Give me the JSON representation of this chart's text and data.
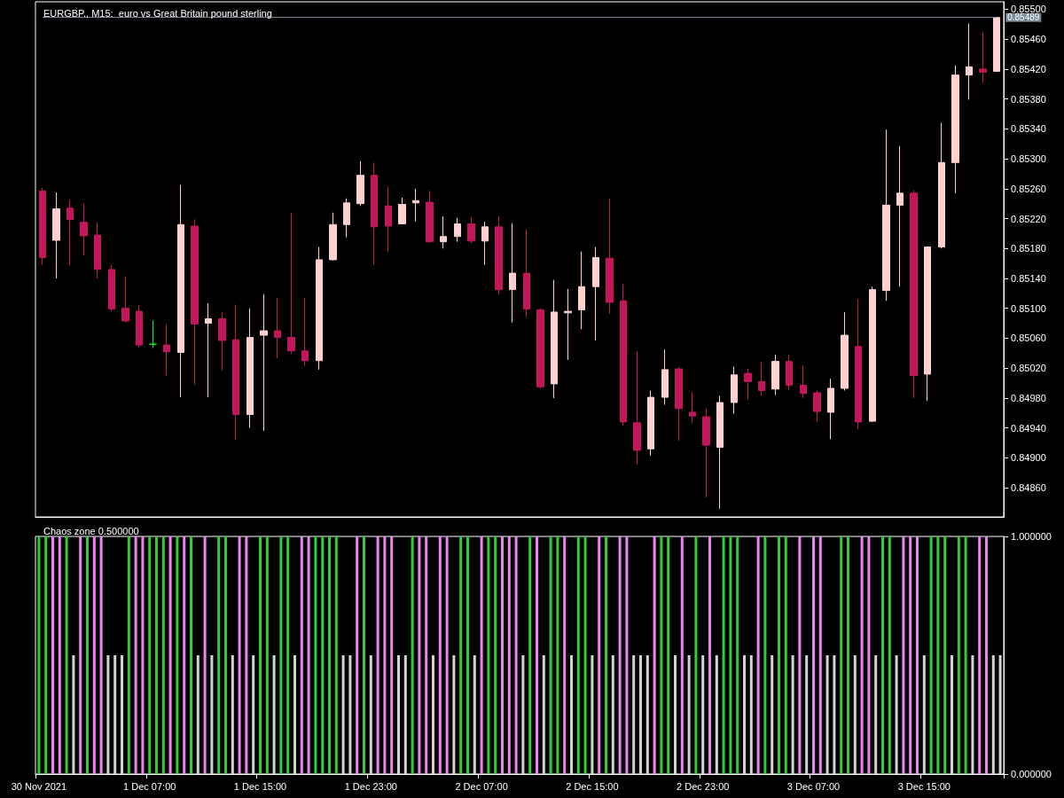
{
  "chart_data": [
    {
      "type": "candlestick",
      "title": "EURGBP., M15:  euro vs Great Britain pound sterling",
      "categories": [
        null,
        null,
        null,
        null,
        null,
        null,
        null,
        null,
        null,
        null,
        null,
        null,
        null,
        null,
        null,
        null,
        null,
        null,
        null,
        null,
        null,
        null,
        null,
        null,
        null,
        null,
        null,
        null,
        null,
        null,
        null,
        null,
        null,
        null,
        null,
        null,
        null,
        null,
        null,
        null,
        null,
        null,
        null,
        null,
        null,
        null,
        null,
        null,
        null,
        null,
        null,
        null,
        null,
        null,
        null,
        null,
        null,
        null,
        null,
        null,
        null,
        null,
        null,
        null,
        null,
        null,
        null,
        null,
        null,
        null
      ],
      "ohlc": [
        [
          0.85257,
          0.85261,
          0.85158,
          0.85168
        ],
        [
          0.85191,
          0.85255,
          0.8514,
          0.85233
        ],
        [
          0.85234,
          0.85245,
          0.85158,
          0.85219
        ],
        [
          0.85215,
          0.8524,
          0.85171,
          0.85197
        ],
        [
          0.85198,
          0.85215,
          0.8514,
          0.85152
        ],
        [
          0.85152,
          0.85158,
          0.85096,
          0.85099
        ],
        [
          0.851,
          0.85143,
          0.85081,
          0.85083
        ],
        [
          0.85096,
          0.85105,
          0.85047,
          0.85051
        ],
        [
          0.85052,
          0.85084,
          0.85047,
          0.85052
        ],
        [
          0.85051,
          0.85079,
          0.8501,
          0.85042
        ],
        [
          0.85041,
          0.85265,
          0.84981,
          0.85212
        ],
        [
          0.8521,
          0.85219,
          0.84998,
          0.85079
        ],
        [
          0.8508,
          0.85107,
          0.84981,
          0.85086
        ],
        [
          0.85086,
          0.85095,
          0.85017,
          0.85057
        ],
        [
          0.85058,
          0.85105,
          0.84924,
          0.84958
        ],
        [
          0.84958,
          0.851,
          0.8494,
          0.85061
        ],
        [
          0.85064,
          0.85119,
          0.84936,
          0.8507
        ],
        [
          0.8507,
          0.85114,
          0.85033,
          0.85061
        ],
        [
          0.85061,
          0.85228,
          0.85039,
          0.85043
        ],
        [
          0.85043,
          0.85114,
          0.85023,
          0.8503
        ],
        [
          0.8503,
          0.85182,
          0.85018,
          0.85165
        ],
        [
          0.85165,
          0.85228,
          0.85164,
          0.85212
        ],
        [
          0.85212,
          0.85247,
          0.85195,
          0.85241
        ],
        [
          0.8524,
          0.85297,
          0.85237,
          0.85278
        ],
        [
          0.85278,
          0.85295,
          0.85158,
          0.85209
        ],
        [
          0.85237,
          0.85263,
          0.85176,
          0.8521
        ],
        [
          0.85213,
          0.85248,
          0.85213,
          0.85239
        ],
        [
          0.85241,
          0.8526,
          0.85216,
          0.85244
        ],
        [
          0.85242,
          0.85257,
          0.85188,
          0.85189
        ],
        [
          0.85189,
          0.85223,
          0.8518,
          0.85196
        ],
        [
          0.85196,
          0.85221,
          0.85189,
          0.85213
        ],
        [
          0.85213,
          0.85222,
          0.85187,
          0.8519
        ],
        [
          0.8519,
          0.85216,
          0.85158,
          0.85209
        ],
        [
          0.85209,
          0.85223,
          0.85119,
          0.85125
        ],
        [
          0.85125,
          0.85214,
          0.85081,
          0.85147
        ],
        [
          0.85147,
          0.85206,
          0.85088,
          0.85099
        ],
        [
          0.85098,
          0.851,
          0.84993,
          0.84995
        ],
        [
          0.84999,
          0.85138,
          0.8498,
          0.85095
        ],
        [
          0.85094,
          0.85126,
          0.85031,
          0.85096
        ],
        [
          0.85098,
          0.85176,
          0.85072,
          0.85129
        ],
        [
          0.85129,
          0.85182,
          0.85057,
          0.85168
        ],
        [
          0.85167,
          0.85247,
          0.85093,
          0.85108
        ],
        [
          0.8511,
          0.85132,
          0.84943,
          0.84948
        ],
        [
          0.84947,
          0.85043,
          0.84891,
          0.8491
        ],
        [
          0.84912,
          0.8499,
          0.84903,
          0.84981
        ],
        [
          0.84981,
          0.85045,
          0.84971,
          0.85018
        ],
        [
          0.85019,
          0.85022,
          0.84923,
          0.84966
        ],
        [
          0.84961,
          0.84988,
          0.84946,
          0.84956
        ],
        [
          0.84955,
          0.84966,
          0.84847,
          0.84917
        ],
        [
          0.84914,
          0.84983,
          0.84832,
          0.84974
        ],
        [
          0.84974,
          0.85022,
          0.84959,
          0.85011
        ],
        [
          0.85013,
          0.85019,
          0.84978,
          0.85002
        ],
        [
          0.85002,
          0.85028,
          0.84983,
          0.8499
        ],
        [
          0.84992,
          0.85038,
          0.84984,
          0.85029
        ],
        [
          0.85029,
          0.85038,
          0.84991,
          0.84997
        ],
        [
          0.84997,
          0.85024,
          0.8498,
          0.84986
        ],
        [
          0.84987,
          0.8499,
          0.84948,
          0.84962
        ],
        [
          0.84961,
          0.85006,
          0.84925,
          0.84993
        ],
        [
          0.84993,
          0.85095,
          0.8499,
          0.85064
        ],
        [
          0.85049,
          0.85113,
          0.84938,
          0.84948
        ],
        [
          0.84949,
          0.85129,
          0.84948,
          0.85125
        ],
        [
          0.85124,
          0.85339,
          0.8511,
          0.85238
        ],
        [
          0.85238,
          0.85317,
          0.85129,
          0.85254
        ],
        [
          0.85254,
          0.85258,
          0.8498,
          0.8501
        ],
        [
          0.85012,
          0.85182,
          0.84976,
          0.85182
        ],
        [
          0.85182,
          0.85348,
          0.8518,
          0.85295
        ],
        [
          0.85295,
          0.85425,
          0.85254,
          0.85412
        ],
        [
          0.85412,
          0.85481,
          0.85379,
          0.85423
        ],
        [
          0.8542,
          0.85469,
          0.85401,
          0.85416
        ],
        [
          0.85417,
          0.8549,
          0.85417,
          0.85489
        ]
      ],
      "colors": [
        "#c2185b",
        "#ffd0d0",
        "#c2185b",
        "#c2185b",
        "#c2185b",
        "#c2185b",
        "#c2185b",
        "#c2185b",
        "#00ff00",
        "#c2185b",
        "#ffd0d0",
        "#c2185b",
        "#ffd0d0",
        "#c2185b",
        "#c2185b",
        "#ffd0d0",
        "#ffd0d0",
        "#c2185b",
        "#c2185b",
        "#c2185b",
        "#ffd0d0",
        "#ffd0d0",
        "#ffd0d0",
        "#ffd0d0",
        "#c2185b",
        "#c2185b",
        "#ffd0d0",
        "#ffd0d0",
        "#c2185b",
        "#ffd0d0",
        "#ffd0d0",
        "#c2185b",
        "#ffd0d0",
        "#c2185b",
        "#ffd0d0",
        "#c2185b",
        "#c2185b",
        "#ffd0d0",
        "#ffd0d0",
        "#ffd0d0",
        "#ffd0d0",
        "#c2185b",
        "#c2185b",
        "#c2185b",
        "#ffd0d0",
        "#ffd0d0",
        "#c2185b",
        "#c2185b",
        "#c2185b",
        "#ffd0d0",
        "#ffd0d0",
        "#c2185b",
        "#c2185b",
        "#ffd0d0",
        "#c2185b",
        "#c2185b",
        "#c2185b",
        "#ffd0d0",
        "#ffd0d0",
        "#c2185b",
        "#ffd0d0",
        "#ffd0d0",
        "#ffd0d0",
        "#c2185b",
        "#ffd0d0",
        "#ffd0d0",
        "#ffd0d0",
        "#ffd0d0",
        "#c2185b",
        "#ffd0d0"
      ],
      "ylim": [
        0.84821,
        0.8551
      ],
      "yticks": [
        {
          "value": 0.8486,
          "label": "0.84860"
        },
        {
          "value": 0.849,
          "label": "0.84900"
        },
        {
          "value": 0.8494,
          "label": "0.84940"
        },
        {
          "value": 0.8498,
          "label": "0.84980"
        },
        {
          "value": 0.8502,
          "label": "0.85020"
        },
        {
          "value": 0.8506,
          "label": "0.85060"
        },
        {
          "value": 0.851,
          "label": "0.85100"
        },
        {
          "value": 0.8514,
          "label": "0.85140"
        },
        {
          "value": 0.8518,
          "label": "0.85180"
        },
        {
          "value": 0.8522,
          "label": "0.85220"
        },
        {
          "value": 0.8526,
          "label": "0.85260"
        },
        {
          "value": 0.853,
          "label": "0.85300"
        },
        {
          "value": 0.8534,
          "label": "0.85340"
        },
        {
          "value": 0.8538,
          "label": "0.85380"
        },
        {
          "value": 0.8542,
          "label": "0.85420"
        },
        {
          "value": 0.8546,
          "label": "0.85460"
        },
        {
          "value": 0.855,
          "label": "0.85500"
        }
      ],
      "tick_labels": "y",
      "ref_lines": [
        {
          "axis": "y",
          "value": 0.85489,
          "label": "0.85489",
          "color": "#778899"
        }
      ]
    },
    {
      "type": "bar",
      "title": "Chaos zone 0.500000",
      "categories": [
        "30 Nov 2021",
        null,
        null,
        null,
        null,
        null,
        null,
        null,
        null,
        null,
        null,
        null,
        null,
        null,
        null,
        null,
        "1 Dec 07:00",
        null,
        null,
        null,
        null,
        null,
        null,
        null,
        null,
        null,
        null,
        null,
        null,
        null,
        null,
        null,
        "1 Dec 15:00",
        null,
        null,
        null,
        null,
        null,
        null,
        null,
        null,
        null,
        null,
        null,
        null,
        null,
        null,
        null,
        "1 Dec 23:00",
        null,
        null,
        null,
        null,
        null,
        null,
        null,
        null,
        null,
        null,
        null,
        null,
        null,
        null,
        null,
        "2 Dec 07:00",
        null,
        null,
        null,
        null,
        null,
        null,
        null,
        null,
        null,
        null,
        null,
        null,
        null,
        null,
        null,
        "2 Dec 15:00",
        null,
        null,
        null,
        null,
        null,
        null,
        null,
        null,
        null,
        null,
        null,
        null,
        null,
        null,
        null,
        "2 Dec 23:00",
        null,
        null,
        null,
        null,
        null,
        null,
        null,
        null,
        null,
        null,
        null,
        null,
        null,
        null,
        null,
        "3 Dec 07:00",
        null,
        null,
        null,
        null,
        null,
        null,
        null,
        null,
        null,
        null,
        null,
        null,
        null,
        null,
        null,
        "3 Dec 15:00",
        null,
        null,
        null,
        null,
        null,
        null,
        null,
        null,
        null,
        null,
        null
      ],
      "values": [
        1,
        1,
        1,
        1,
        1,
        0.5,
        1,
        1,
        1,
        1,
        0.5,
        0.5,
        0.5,
        1,
        1,
        1,
        1,
        1,
        1,
        1,
        1,
        1,
        1,
        0.5,
        1,
        0.5,
        1,
        1,
        0.5,
        1,
        1,
        0.5,
        1,
        1,
        0.5,
        1,
        1,
        0.5,
        1,
        1,
        1,
        1,
        1,
        1,
        0.5,
        0.5,
        1,
        1,
        0.5,
        1,
        1,
        1,
        0.5,
        0.5,
        1,
        1,
        1,
        0.5,
        1,
        1,
        0.5,
        1,
        1,
        0.5,
        1,
        1,
        1,
        1,
        1,
        1,
        0.5,
        1,
        1,
        0.5,
        1,
        1,
        1,
        0.5,
        1,
        1,
        0.5,
        1,
        1,
        0.5,
        1,
        1,
        0.5,
        0.5,
        0.5,
        1,
        1,
        1,
        0.5,
        1,
        0.5,
        1,
        0.5,
        1,
        0.5,
        1,
        1,
        1,
        0.5,
        0.5,
        1,
        1,
        0.5,
        1,
        1,
        0.5,
        1,
        0.5,
        1,
        1,
        0.5,
        0.5,
        1,
        1,
        0.5,
        1,
        1,
        0.5,
        1,
        1,
        0.5,
        1,
        1,
        1,
        0.5,
        1,
        1,
        1,
        0.5,
        1,
        1,
        0.5,
        1,
        1,
        0.5,
        0.5
      ],
      "colors": [
        "#32cd32",
        "#32cd32",
        "#ee82ee",
        "#ee82ee",
        "#32cd32",
        "#d3d3d3",
        "#ee82ee",
        "#32cd32",
        "#ee82ee",
        "#ee82ee",
        "#d3d3d3",
        "#d3d3d3",
        "#d3d3d3",
        "#32cd32",
        "#ee82ee",
        "#ee82ee",
        "#32cd32",
        "#32cd32",
        "#32cd32",
        "#ee82ee",
        "#32cd32",
        "#ee82ee",
        "#32cd32",
        "#d3d3d3",
        "#ee82ee",
        "#d3d3d3",
        "#32cd32",
        "#32cd32",
        "#d3d3d3",
        "#ee82ee",
        "#ee82ee",
        "#d3d3d3",
        "#32cd32",
        "#32cd32",
        "#d3d3d3",
        "#32cd32",
        "#32cd32",
        "#d3d3d3",
        "#ee82ee",
        "#ee82ee",
        "#32cd32",
        "#32cd32",
        "#32cd32",
        "#32cd32",
        "#d3d3d3",
        "#d3d3d3",
        "#ee82ee",
        "#32cd32",
        "#d3d3d3",
        "#ee82ee",
        "#ee82ee",
        "#ee82ee",
        "#d3d3d3",
        "#d3d3d3",
        "#32cd32",
        "#ee82ee",
        "#ee82ee",
        "#d3d3d3",
        "#ee82ee",
        "#ee82ee",
        "#d3d3d3",
        "#32cd32",
        "#32cd32",
        "#d3d3d3",
        "#ee82ee",
        "#32cd32",
        "#32cd32",
        "#ee82ee",
        "#ee82ee",
        "#ee82ee",
        "#d3d3d3",
        "#32cd32",
        "#ee82ee",
        "#d3d3d3",
        "#32cd32",
        "#32cd32",
        "#ee82ee",
        "#d3d3d3",
        "#32cd32",
        "#32cd32",
        "#d3d3d3",
        "#ee82ee",
        "#32cd32",
        "#d3d3d3",
        "#ee82ee",
        "#ee82ee",
        "#d3d3d3",
        "#d3d3d3",
        "#d3d3d3",
        "#ee82ee",
        "#32cd32",
        "#32cd32",
        "#d3d3d3",
        "#ee82ee",
        "#d3d3d3",
        "#32cd32",
        "#d3d3d3",
        "#ee82ee",
        "#d3d3d3",
        "#32cd32",
        "#32cd32",
        "#32cd32",
        "#d3d3d3",
        "#d3d3d3",
        "#ee82ee",
        "#32cd32",
        "#d3d3d3",
        "#32cd32",
        "#32cd32",
        "#d3d3d3",
        "#ee82ee",
        "#d3d3d3",
        "#ee82ee",
        "#ee82ee",
        "#d3d3d3",
        "#d3d3d3",
        "#32cd32",
        "#32cd32",
        "#d3d3d3",
        "#ee82ee",
        "#ee82ee",
        "#d3d3d3",
        "#32cd32",
        "#32cd32",
        "#d3d3d3",
        "#ee82ee",
        "#ee82ee",
        "#ee82ee",
        "#d3d3d3",
        "#32cd32",
        "#32cd32",
        "#32cd32",
        "#d3d3d3",
        "#32cd32",
        "#32cd32",
        "#d3d3d3",
        "#ee82ee",
        "#ee82ee",
        "#d3d3d3",
        "#d3d3d3"
      ],
      "ylim": [
        0,
        1
      ],
      "yticks": [
        {
          "value": 0,
          "label": "0.000000"
        },
        {
          "value": 1,
          "label": "1.000000"
        }
      ]
    }
  ]
}
